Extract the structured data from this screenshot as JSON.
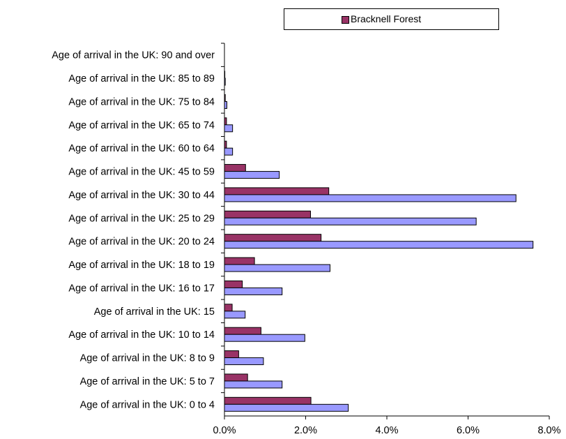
{
  "legend": {
    "label": "Bracknell Forest",
    "color": "#993366"
  },
  "chart_data": {
    "type": "bar",
    "orientation": "horizontal",
    "categories": [
      "Age of arrival in the UK: 0 to 4",
      "Age of arrival in the UK: 5 to 7",
      "Age of arrival in the UK: 8 to 9",
      "Age of arrival in the UK: 10 to 14",
      "Age of arrival in the UK: 15",
      "Age of arrival in the UK: 16 to 17",
      "Age of arrival in the UK: 18 to 19",
      "Age of arrival in the UK: 20 to 24",
      "Age of arrival in the UK: 25 to 29",
      "Age of arrival in the UK: 30 to 44",
      "Age of arrival in the UK: 45 to 59",
      "Age of arrival in the UK: 60 to 64",
      "Age of arrival in the UK: 65 to 74",
      "Age of arrival in the UK: 75 to 84",
      "Age of arrival in the UK: 85 to 89",
      "Age of arrival in the UK: 90 and over"
    ],
    "series": [
      {
        "name": "Bracknell Forest",
        "color": "#993366",
        "values": [
          2.13,
          0.57,
          0.35,
          0.9,
          0.19,
          0.44,
          0.74,
          2.38,
          2.12,
          2.57,
          0.52,
          0.05,
          0.05,
          0.02,
          0.01,
          0.0
        ]
      },
      {
        "color": "#9999ff",
        "values": [
          3.05,
          1.42,
          0.96,
          1.98,
          0.51,
          1.42,
          2.6,
          7.6,
          6.2,
          7.18,
          1.35,
          0.2,
          0.2,
          0.06,
          0.02,
          0.0
        ]
      }
    ],
    "xlim": [
      0,
      8
    ],
    "xticks": [
      "0.0%",
      "2.0%",
      "4.0%",
      "6.0%",
      "8.0%"
    ],
    "grid": false,
    "legend_position": "top-right"
  }
}
